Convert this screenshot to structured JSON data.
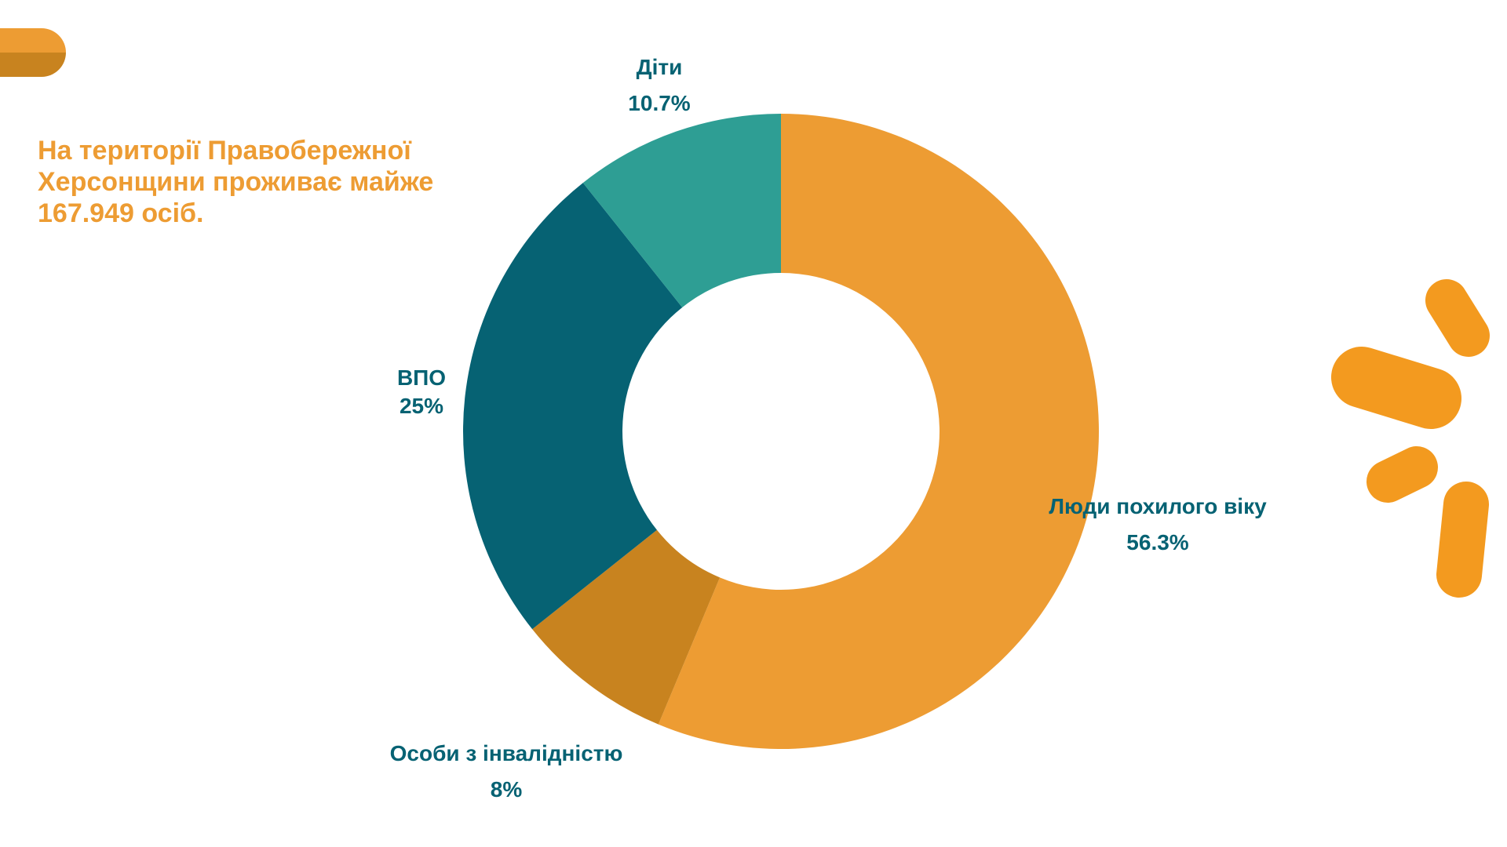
{
  "headline": "На території Правобережної\nХерсонщини проживає майже\n167.949 осіб.",
  "colors": {
    "headline": "#ED9C33",
    "label": "#066273",
    "decor_orange": "#F39A1F",
    "pill_top": "#ED9C33",
    "pill_bottom": "#C8831F"
  },
  "chart_data": {
    "type": "donut",
    "title": "",
    "slices": [
      {
        "name": "Люди похилого віку",
        "value": 56.3,
        "label": "56.3%",
        "color": "#ED9C33"
      },
      {
        "name": "Особи з інвалідністю",
        "value": 8,
        "label": "8%",
        "color": "#C8831F"
      },
      {
        "name": "ВПО",
        "value": 25,
        "label": "25%",
        "color": "#066273"
      },
      {
        "name": "Діти",
        "value": 10.7,
        "label": "10.7%",
        "color": "#2E9E94"
      }
    ],
    "start_angle": "12 o'clock",
    "direction": "clockwise",
    "legend": "none"
  }
}
